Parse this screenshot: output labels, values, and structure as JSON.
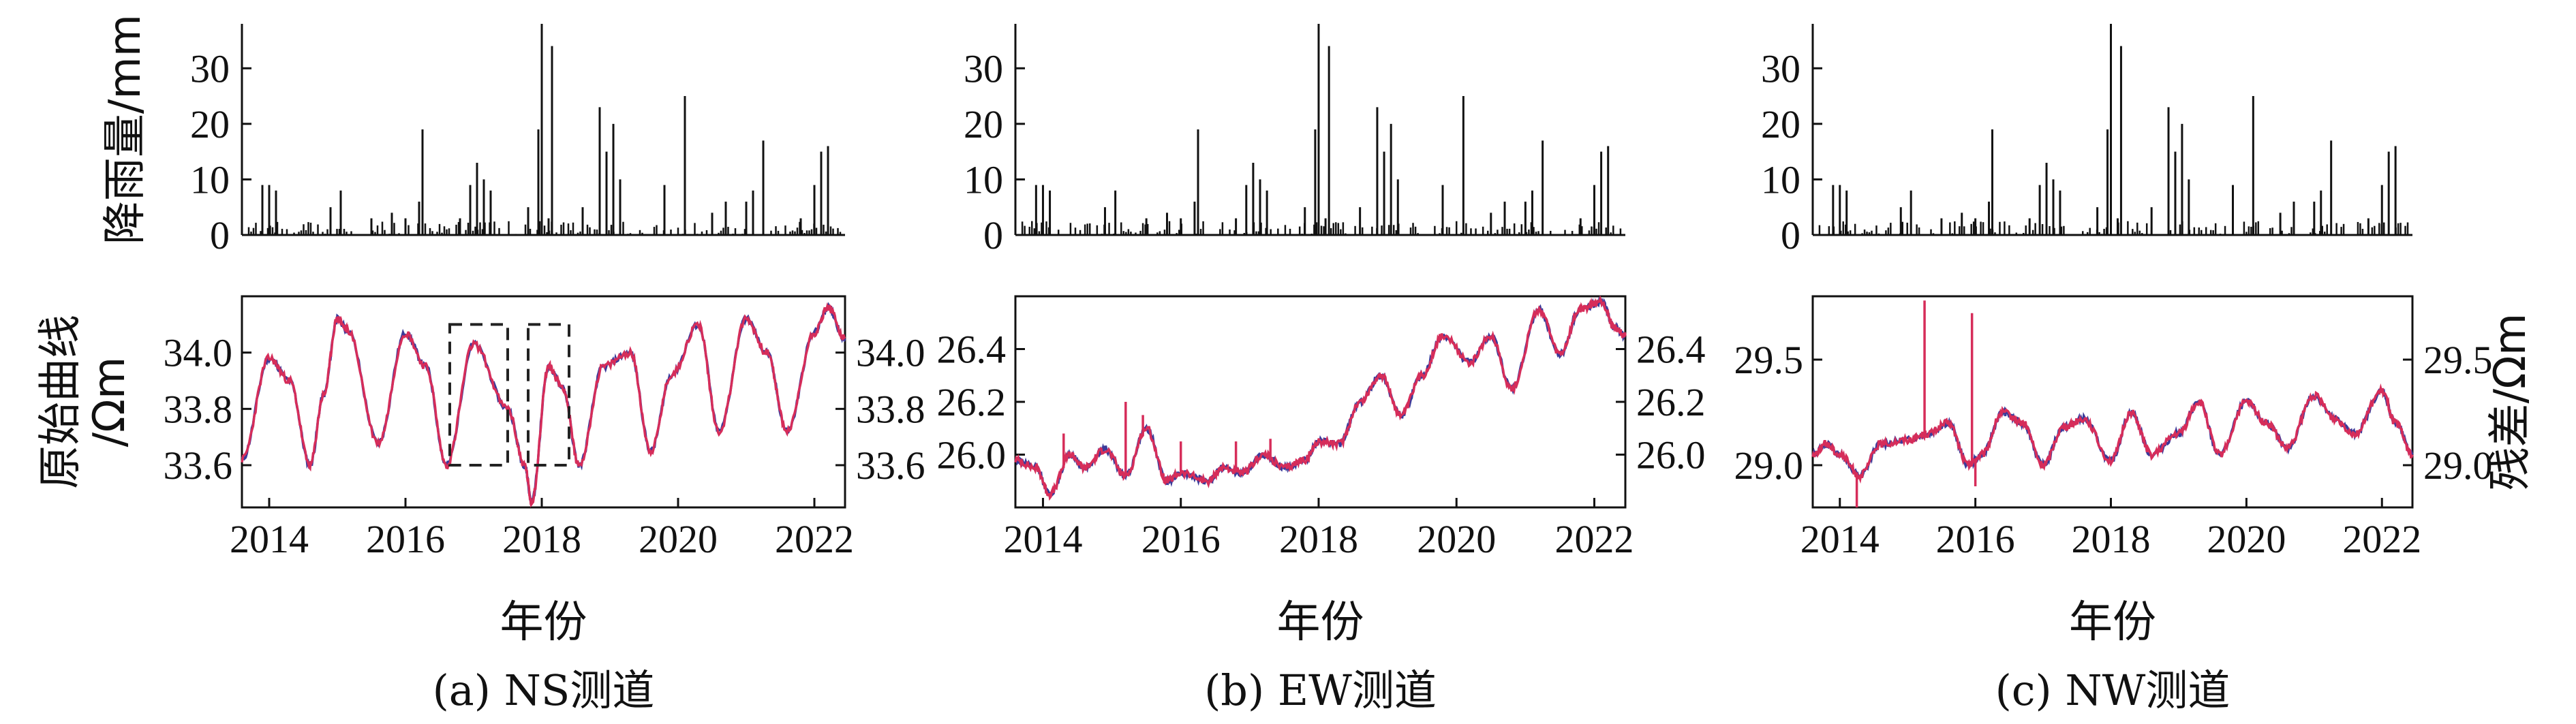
{
  "colors": {
    "original": "#d62d5a",
    "residual": "#3a3a9a",
    "rain": "#111111",
    "box": "#222222"
  },
  "chart_data": [
    {
      "id": "a",
      "type": "bar",
      "caption": "(a) NS测道",
      "xlabel": "年份",
      "rain": {
        "ylabel": "降雨量/mm",
        "ylim": [
          0,
          38
        ],
        "yticks": [
          "0",
          "10",
          "20",
          "30"
        ],
        "peaks": [
          [
            2013.9,
            9
          ],
          [
            2014.0,
            9
          ],
          [
            2014.1,
            8
          ],
          [
            2014.9,
            5
          ],
          [
            2015.05,
            8
          ],
          [
            2015.5,
            3
          ],
          [
            2015.8,
            4
          ],
          [
            2016.0,
            3
          ],
          [
            2016.2,
            6
          ],
          [
            2016.25,
            19
          ],
          [
            2016.8,
            3
          ],
          [
            2016.95,
            9
          ],
          [
            2017.05,
            13
          ],
          [
            2017.15,
            10
          ],
          [
            2017.25,
            8
          ],
          [
            2017.8,
            5
          ],
          [
            2017.95,
            19
          ],
          [
            2018.0,
            38
          ],
          [
            2018.1,
            3
          ],
          [
            2018.15,
            34
          ],
          [
            2018.6,
            5
          ],
          [
            2018.85,
            23
          ],
          [
            2018.95,
            15
          ],
          [
            2019.05,
            20
          ],
          [
            2019.15,
            10
          ],
          [
            2019.8,
            9
          ],
          [
            2020.1,
            25
          ],
          [
            2020.5,
            4
          ],
          [
            2020.7,
            6
          ],
          [
            2021.0,
            6
          ],
          [
            2021.1,
            8
          ],
          [
            2021.25,
            17
          ],
          [
            2021.8,
            3
          ],
          [
            2022.0,
            9
          ],
          [
            2022.1,
            15
          ],
          [
            2022.2,
            16
          ]
        ]
      },
      "curve": {
        "ylabel": "原始曲线\n/Ωm",
        "ylim_left": [
          33.45,
          34.2
        ],
        "yticks_left": [
          "33.6",
          "33.8",
          "34.0"
        ],
        "yticks_right": [
          "33.6",
          "33.8",
          "34.0"
        ],
        "xlim": [
          2013.6,
          2022.45
        ],
        "xticks": [
          "2014",
          "2016",
          "2018",
          "2020",
          "2022"
        ],
        "x": [
          2013.6,
          2014.0,
          2014.3,
          2014.6,
          2014.8,
          2015.0,
          2015.15,
          2015.6,
          2016.0,
          2016.3,
          2016.6,
          2017.0,
          2017.5,
          2017.75,
          2017.85,
          2018.1,
          2018.3,
          2018.55,
          2018.9,
          2019.3,
          2019.6,
          2019.9,
          2020.3,
          2020.6,
          2021.0,
          2021.3,
          2021.6,
          2022.0,
          2022.2,
          2022.45
        ],
        "y": [
          33.62,
          33.98,
          33.9,
          33.6,
          33.85,
          34.12,
          34.08,
          33.68,
          34.07,
          33.95,
          33.6,
          34.03,
          33.8,
          33.6,
          33.47,
          33.95,
          33.88,
          33.6,
          33.95,
          34.0,
          33.65,
          33.92,
          34.1,
          33.72,
          34.12,
          34.0,
          33.72,
          34.07,
          34.16,
          34.05
        ],
        "boxes": [
          [
            2016.65,
            2017.5,
            33.6,
            34.1
          ],
          [
            2017.8,
            2018.4,
            33.6,
            34.1
          ]
        ]
      }
    },
    {
      "id": "b",
      "type": "bar",
      "caption": "(b) EW测道",
      "xlabel": "年份",
      "rain": {
        "ylabel": "",
        "ylim": [
          0,
          38
        ],
        "yticks": [
          "0",
          "10",
          "20",
          "30"
        ],
        "peaks": [
          [
            2013.9,
            9
          ],
          [
            2014.0,
            9
          ],
          [
            2014.1,
            8
          ],
          [
            2014.9,
            5
          ],
          [
            2015.05,
            8
          ],
          [
            2015.5,
            3
          ],
          [
            2015.8,
            4
          ],
          [
            2016.0,
            3
          ],
          [
            2016.2,
            6
          ],
          [
            2016.25,
            19
          ],
          [
            2016.8,
            3
          ],
          [
            2016.95,
            9
          ],
          [
            2017.05,
            13
          ],
          [
            2017.15,
            10
          ],
          [
            2017.25,
            8
          ],
          [
            2017.8,
            5
          ],
          [
            2017.95,
            19
          ],
          [
            2018.0,
            38
          ],
          [
            2018.1,
            3
          ],
          [
            2018.15,
            34
          ],
          [
            2018.6,
            5
          ],
          [
            2018.85,
            23
          ],
          [
            2018.95,
            15
          ],
          [
            2019.05,
            20
          ],
          [
            2019.15,
            10
          ],
          [
            2019.8,
            9
          ],
          [
            2020.1,
            25
          ],
          [
            2020.5,
            4
          ],
          [
            2020.7,
            6
          ],
          [
            2021.0,
            6
          ],
          [
            2021.1,
            8
          ],
          [
            2021.25,
            17
          ],
          [
            2021.8,
            3
          ],
          [
            2022.0,
            9
          ],
          [
            2022.1,
            15
          ],
          [
            2022.2,
            16
          ]
        ]
      },
      "curve": {
        "ylabel": "",
        "ylim_left": [
          25.8,
          26.6
        ],
        "yticks_left": [
          "26.0",
          "26.2",
          "26.4"
        ],
        "yticks_right": [
          "26.0",
          "26.2",
          "26.4"
        ],
        "xlim": [
          2013.6,
          2022.45
        ],
        "xticks": [
          "2014",
          "2016",
          "2018",
          "2020",
          "2022"
        ],
        "x": [
          2013.6,
          2013.9,
          2014.1,
          2014.4,
          2014.6,
          2014.9,
          2015.2,
          2015.5,
          2015.8,
          2016.0,
          2016.4,
          2016.6,
          2016.9,
          2017.2,
          2017.5,
          2017.8,
          2018.0,
          2018.3,
          2018.6,
          2018.9,
          2019.2,
          2019.5,
          2019.8,
          2020.2,
          2020.5,
          2020.8,
          2021.2,
          2021.5,
          2021.8,
          2022.1,
          2022.3,
          2022.45
        ],
        "y": [
          25.98,
          25.95,
          25.85,
          26.0,
          25.95,
          26.02,
          25.92,
          26.1,
          25.9,
          25.93,
          25.9,
          25.95,
          25.93,
          26.0,
          25.95,
          25.98,
          26.05,
          26.04,
          26.2,
          26.3,
          26.15,
          26.3,
          26.45,
          26.35,
          26.45,
          26.25,
          26.55,
          26.38,
          26.55,
          26.58,
          26.48,
          26.45
        ],
        "spikes": [
          [
            2014.3,
            26.08
          ],
          [
            2015.2,
            26.2
          ],
          [
            2015.45,
            26.15
          ],
          [
            2016.0,
            26.05
          ],
          [
            2016.8,
            26.05
          ],
          [
            2017.3,
            26.06
          ]
        ]
      }
    },
    {
      "id": "c",
      "type": "bar",
      "caption": "(c) NW测道",
      "xlabel": "年份",
      "rain": {
        "ylabel": "",
        "ylim": [
          0,
          38
        ],
        "yticks": [
          "0",
          "10",
          "20",
          "30"
        ],
        "peaks": [
          [
            2013.9,
            9
          ],
          [
            2014.0,
            9
          ],
          [
            2014.1,
            8
          ],
          [
            2014.9,
            5
          ],
          [
            2015.05,
            8
          ],
          [
            2015.5,
            3
          ],
          [
            2015.8,
            4
          ],
          [
            2016.0,
            3
          ],
          [
            2016.2,
            6
          ],
          [
            2016.25,
            19
          ],
          [
            2016.8,
            3
          ],
          [
            2016.95,
            9
          ],
          [
            2017.05,
            13
          ],
          [
            2017.15,
            10
          ],
          [
            2017.25,
            8
          ],
          [
            2017.8,
            5
          ],
          [
            2017.95,
            19
          ],
          [
            2018.0,
            38
          ],
          [
            2018.1,
            3
          ],
          [
            2018.15,
            34
          ],
          [
            2018.6,
            5
          ],
          [
            2018.85,
            23
          ],
          [
            2018.95,
            15
          ],
          [
            2019.05,
            20
          ],
          [
            2019.15,
            10
          ],
          [
            2019.8,
            9
          ],
          [
            2020.1,
            25
          ],
          [
            2020.5,
            4
          ],
          [
            2020.7,
            6
          ],
          [
            2021.0,
            6
          ],
          [
            2021.1,
            8
          ],
          [
            2021.25,
            17
          ],
          [
            2021.8,
            3
          ],
          [
            2022.0,
            9
          ],
          [
            2022.1,
            15
          ],
          [
            2022.2,
            16
          ]
        ]
      },
      "curve": {
        "ylabel": "残差/Ωm",
        "ylim_left": [
          28.8,
          29.8
        ],
        "yticks_left": [
          "29.0",
          "29.5"
        ],
        "yticks_right": [
          "29.0",
          "29.5"
        ],
        "xlim": [
          2013.6,
          2022.45
        ],
        "xticks": [
          "2014",
          "2016",
          "2018",
          "2020",
          "2022"
        ],
        "x": [
          2013.6,
          2013.8,
          2014.0,
          2014.3,
          2014.6,
          2015.0,
          2015.3,
          2015.6,
          2015.9,
          2016.1,
          2016.4,
          2016.7,
          2017.0,
          2017.3,
          2017.6,
          2018.0,
          2018.3,
          2018.6,
          2019.0,
          2019.3,
          2019.6,
          2020.0,
          2020.3,
          2020.6,
          2021.0,
          2021.3,
          2021.6,
          2022.0,
          2022.2,
          2022.45
        ],
        "y": [
          29.05,
          29.1,
          29.05,
          28.95,
          29.1,
          29.12,
          29.15,
          29.2,
          29.0,
          29.05,
          29.25,
          29.2,
          29.0,
          29.18,
          29.22,
          29.02,
          29.25,
          29.05,
          29.15,
          29.3,
          29.05,
          29.3,
          29.2,
          29.08,
          29.33,
          29.22,
          29.15,
          29.35,
          29.2,
          29.05
        ],
        "spikes": [
          [
            2014.25,
            28.78
          ],
          [
            2015.25,
            29.78
          ],
          [
            2015.95,
            29.72
          ],
          [
            2016.0,
            28.9
          ]
        ]
      }
    }
  ]
}
